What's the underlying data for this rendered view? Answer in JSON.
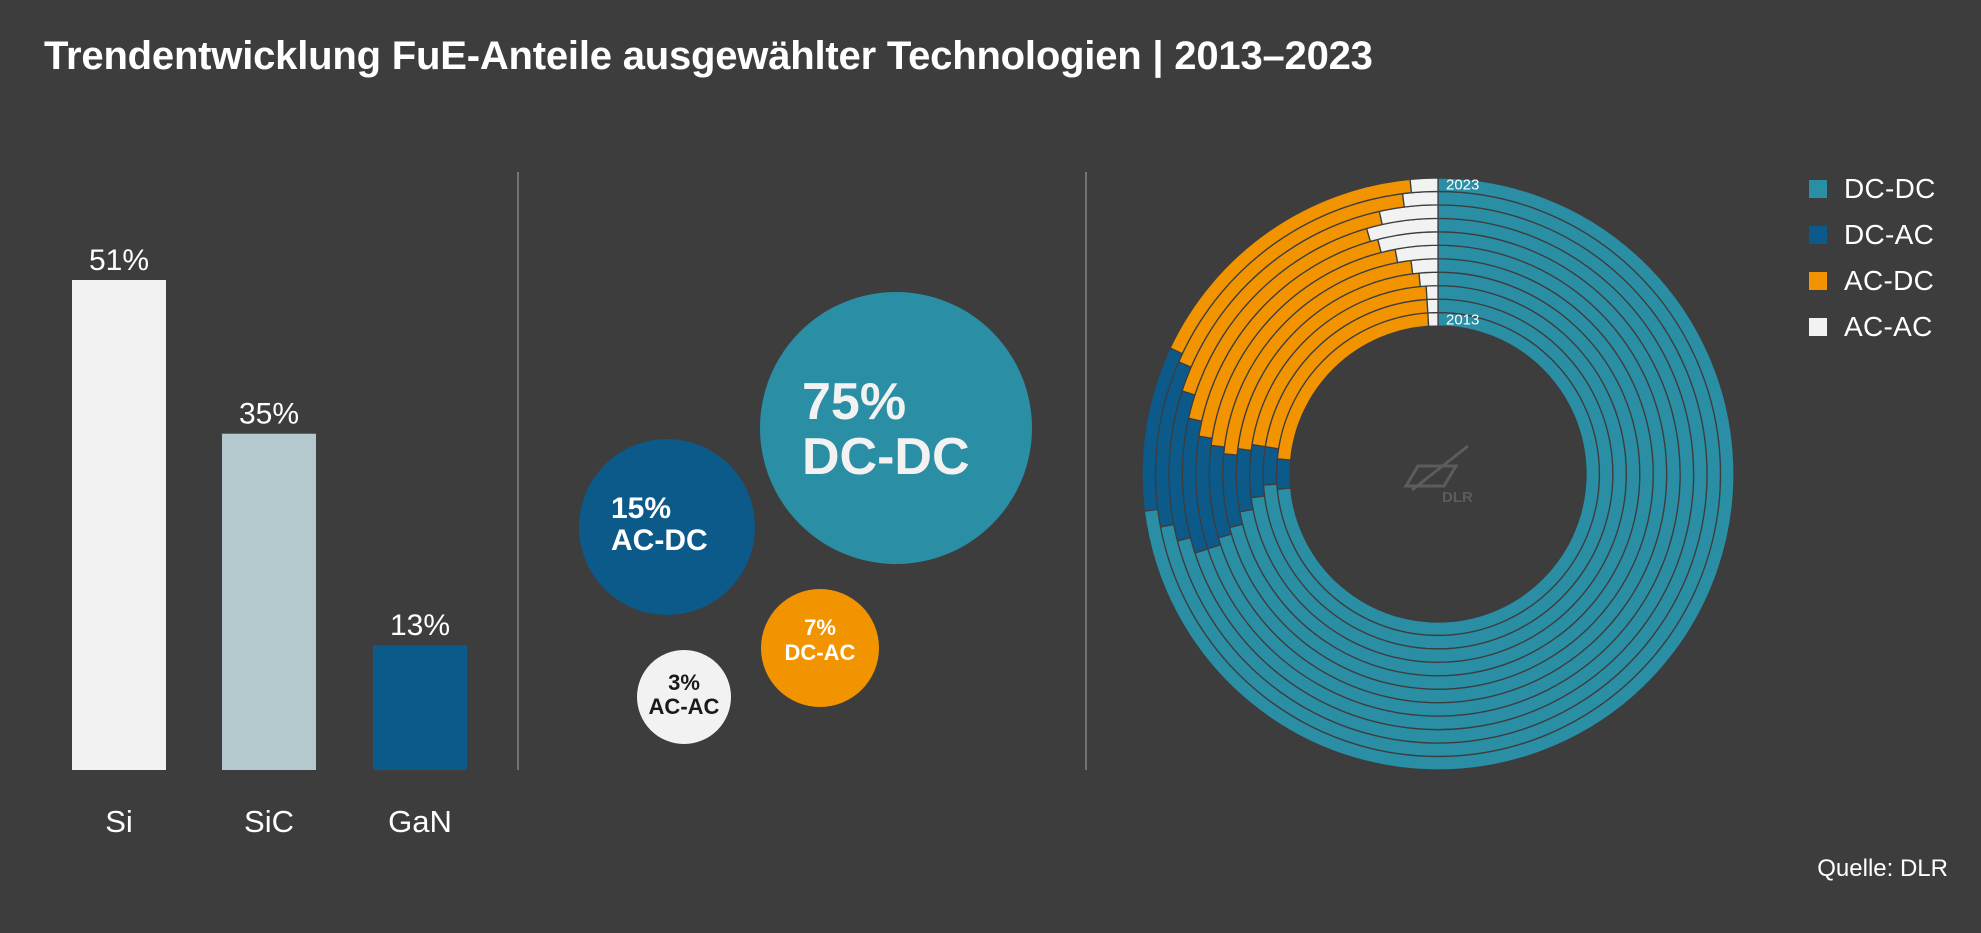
{
  "title": "Trendentwicklung FuE-Anteile ausgewählter Technologien | 2013–2023",
  "source": "Quelle: DLR",
  "logo_text": "DLR",
  "colors": {
    "background": "#3d3d3d",
    "dc_dc": "#2a8ea5",
    "dc_ac": "#f29400",
    "ac_dc": "#0b5a8a",
    "ac_ac": "#f2f2f2",
    "si": "#f2f2f2",
    "sic": "#b4c9ce",
    "gan": "#0b5a8a",
    "divider": "#9a9a9a"
  },
  "legend": [
    {
      "label": "DC-DC",
      "color": "#2a8ea5"
    },
    {
      "label": "DC-AC",
      "color": "#0b5a8a"
    },
    {
      "label": "AC-DC",
      "color": "#f29400"
    },
    {
      "label": "AC-AC",
      "color": "#f2f2f2"
    }
  ],
  "chart_data": [
    {
      "type": "bar",
      "categories": [
        "Si",
        "SiC",
        "GaN"
      ],
      "values": [
        51,
        35,
        13
      ],
      "value_labels": [
        "51%",
        "35%",
        "13%"
      ],
      "colors": [
        "#f2f2f2",
        "#b4c9ce",
        "#0b5a8a"
      ],
      "ylim": [
        0,
        51
      ]
    },
    {
      "type": "bubble",
      "items": [
        {
          "value": 75,
          "value_label": "75%",
          "label": "DC-DC",
          "color": "#2a8ea5",
          "text_color": "#f2f2f2"
        },
        {
          "value": 15,
          "value_label": "15%",
          "label": "AC-DC",
          "color": "#0b5a8a",
          "text_color": "#ffffff"
        },
        {
          "value": 7,
          "value_label": "7%",
          "label": "DC-AC",
          "color": "#f29400",
          "text_color": "#ffffff"
        },
        {
          "value": 3,
          "value_label": "3%",
          "label": "AC-AC",
          "color": "#f2f2f2",
          "text_color": "#1a1a1a"
        }
      ]
    },
    {
      "type": "concentric-donut",
      "year_labels": {
        "outer": "2023",
        "inner": "2013"
      },
      "series_order": [
        "DC-DC",
        "DC-AC",
        "AC-DC",
        "AC-AC"
      ],
      "rings": [
        {
          "year": 2013,
          "values": [
            73.5,
            3.0,
            22.5,
            1.0
          ]
        },
        {
          "year": 2014,
          "values": [
            74.0,
            3.5,
            21.5,
            1.0
          ]
        },
        {
          "year": 2015,
          "values": [
            73.0,
            4.5,
            21.5,
            1.0
          ]
        },
        {
          "year": 2016,
          "values": [
            72.0,
            5.0,
            21.5,
            1.5
          ]
        },
        {
          "year": 2017,
          "values": [
            71.0,
            5.5,
            21.5,
            2.0
          ]
        },
        {
          "year": 2018,
          "values": [
            70.5,
            6.5,
            20.0,
            3.0
          ]
        },
        {
          "year": 2019,
          "values": [
            70.0,
            7.5,
            18.5,
            4.0
          ]
        },
        {
          "year": 2020,
          "values": [
            70.0,
            8.5,
            17.0,
            4.5
          ]
        },
        {
          "year": 2021,
          "values": [
            71.0,
            9.0,
            16.5,
            3.5
          ]
        },
        {
          "year": 2022,
          "values": [
            72.0,
            9.5,
            16.5,
            2.0
          ]
        },
        {
          "year": 2023,
          "values": [
            73.0,
            9.0,
            16.5,
            1.5
          ]
        }
      ]
    }
  ]
}
